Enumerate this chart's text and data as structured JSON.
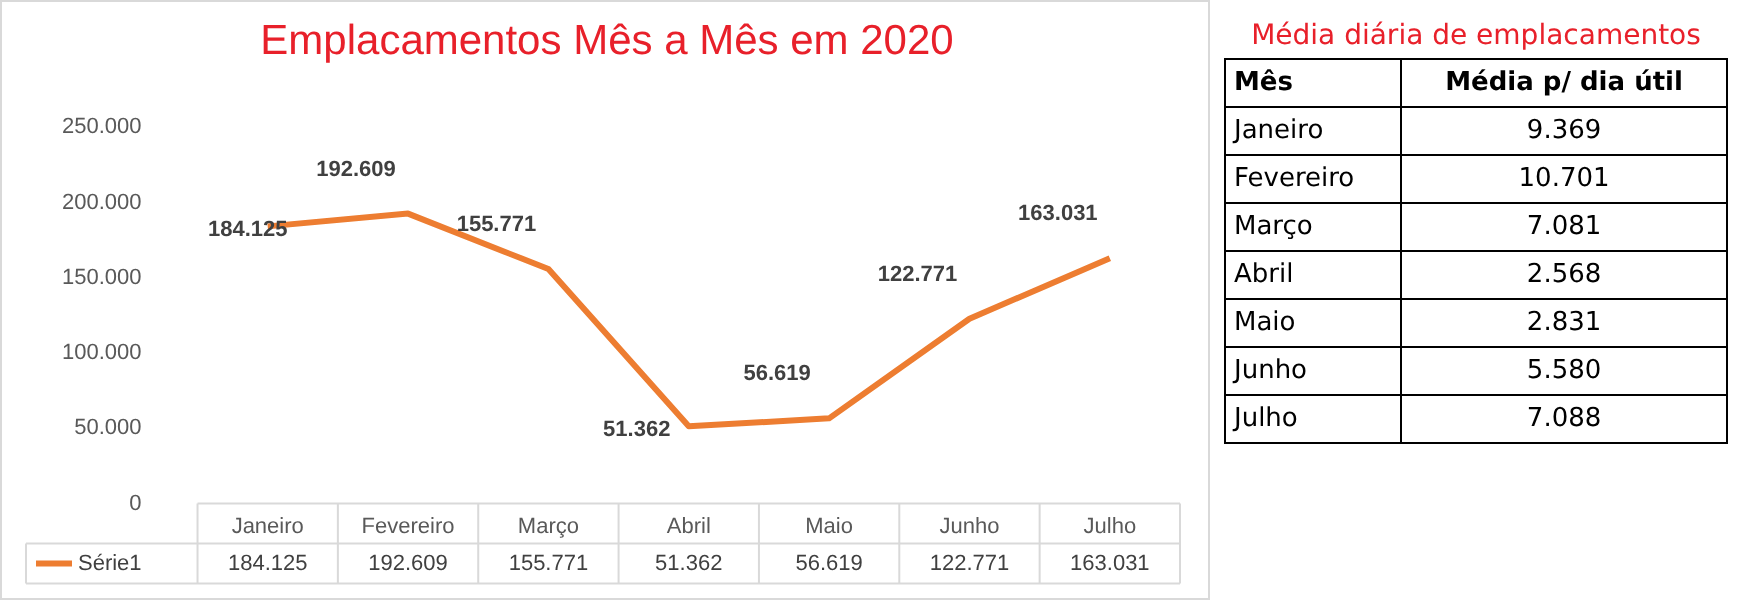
{
  "chart_data": [
    {
      "type": "line",
      "title": "Emplacamentos Mês a Mês em 2020",
      "categories": [
        "Janeiro",
        "Fevereiro",
        "Março",
        "Abril",
        "Maio",
        "Junho",
        "Julho"
      ],
      "series": [
        {
          "name": "Série1",
          "color": "#ed7d31",
          "values": [
            184125,
            192609,
            155771,
            51362,
            56619,
            122771,
            163031
          ],
          "value_labels": [
            "184.125",
            "192.609",
            "155.771",
            "51.362",
            "56.619",
            "122.771",
            "163.031"
          ]
        }
      ],
      "ylim": [
        0,
        250000
      ],
      "yticks": [
        {
          "value": 0,
          "label": "0"
        },
        {
          "value": 50000,
          "label": "50.000"
        },
        {
          "value": 100000,
          "label": "100.000"
        },
        {
          "value": 150000,
          "label": "150.000"
        },
        {
          "value": 200000,
          "label": "200.000"
        },
        {
          "value": 250000,
          "label": "250.000"
        }
      ],
      "legend": "bottom",
      "marker": "none",
      "line_style": "solid"
    },
    {
      "type": "other",
      "title": "Média diária de emplacamentos",
      "xlabel": "Mês",
      "ylabel": "Média p/ dia útil",
      "categories": [
        "Janeiro",
        "Fevereiro",
        "Março",
        "Abril",
        "Maio",
        "Junho",
        "Julho"
      ],
      "value_labels": [
        "9.369",
        "10.701",
        "7.081",
        "2.568",
        "2.831",
        "5.580",
        "7.088"
      ]
    }
  ]
}
